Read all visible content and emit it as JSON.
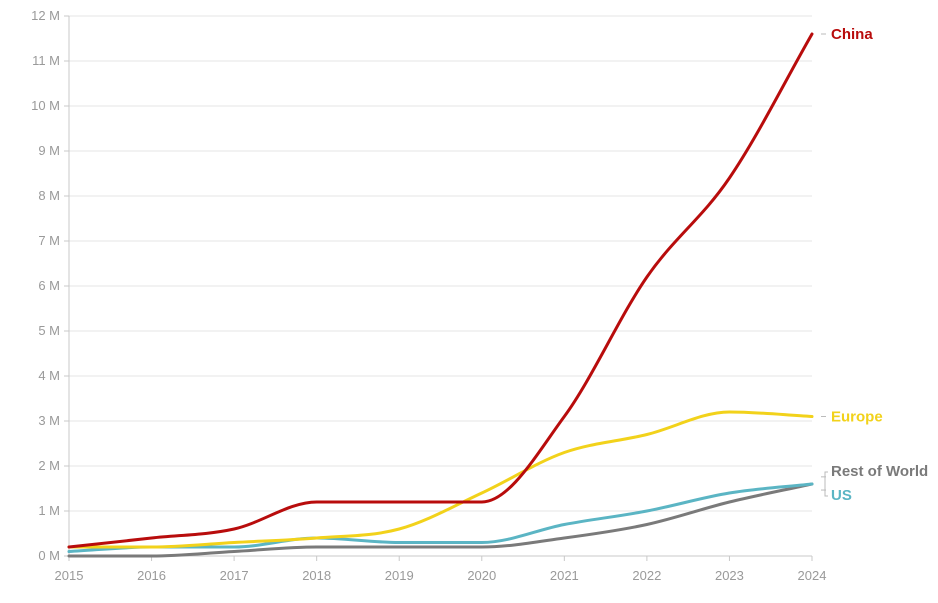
{
  "chart_data": {
    "type": "line",
    "x": [
      2015,
      2016,
      2017,
      2018,
      2019,
      2020,
      2021,
      2022,
      2023,
      2024
    ],
    "x_tick_labels": [
      "2015",
      "2016",
      "2017",
      "2018",
      "2019",
      "2020",
      "2021",
      "2022",
      "2023",
      "2024"
    ],
    "y_tick_labels": [
      "0 M",
      "1 M",
      "2 M",
      "3 M",
      "4 M",
      "5 M",
      "6 M",
      "7 M",
      "8 M",
      "9 M",
      "10 M",
      "11 M",
      "12 M"
    ],
    "ylim": [
      0,
      12000000
    ],
    "xlim": [
      2015,
      2024
    ],
    "grid": "horizontal",
    "series": [
      {
        "name": "Rest of World",
        "color": "#7a7a7a",
        "values": [
          0.0,
          0.0,
          100000,
          200000,
          200000,
          200000,
          400000,
          700000,
          1200000,
          1600000
        ]
      },
      {
        "name": "US",
        "color": "#5bb5c4",
        "values": [
          100000,
          200000,
          200000,
          400000,
          300000,
          300000,
          700000,
          1000000,
          1400000,
          1600000
        ]
      },
      {
        "name": "Europe",
        "color": "#f2d21b",
        "values": [
          200000,
          200000,
          300000,
          400000,
          600000,
          1400000,
          2300000,
          2700000,
          3200000,
          3100000
        ]
      },
      {
        "name": "China",
        "color": "#b80c0c",
        "values": [
          200000,
          400000,
          600000,
          1200000,
          1200000,
          1200000,
          3100000,
          6200000,
          8400000,
          11600000
        ]
      }
    ]
  }
}
